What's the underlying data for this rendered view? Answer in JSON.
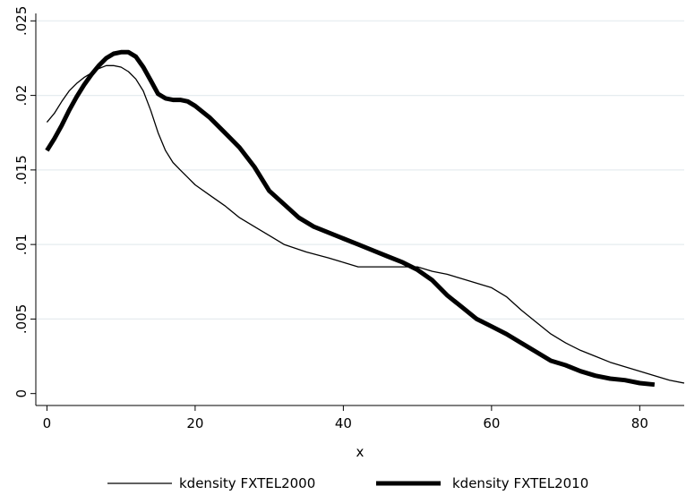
{
  "chart_data": {
    "type": "line",
    "title": "",
    "xlabel": "x",
    "ylabel": "",
    "xlim": [
      -1.5,
      86
    ],
    "ylim": [
      -0.0008,
      0.0255
    ],
    "x_ticks": [
      0,
      20,
      40,
      60,
      80
    ],
    "x_tick_labels": [
      "0",
      "20",
      "40",
      "60",
      "80"
    ],
    "y_ticks": [
      0,
      0.005,
      0.01,
      0.015,
      0.02,
      0.025
    ],
    "y_tick_labels": [
      "0",
      ".005",
      ".01",
      ".015",
      ".02",
      ".025"
    ],
    "grid": "horizontal",
    "legend_position": "bottom",
    "series": [
      {
        "name": "kdensity FXTEL2000",
        "color": "#000000",
        "style": "thin",
        "x": [
          0,
          1,
          2,
          3,
          4,
          5,
          6,
          7,
          8,
          9,
          10,
          11,
          12,
          13,
          14,
          15,
          16,
          17,
          18,
          19,
          20,
          22,
          24,
          26,
          28,
          30,
          32,
          35,
          38,
          40,
          42,
          45,
          48,
          50,
          52,
          54,
          56,
          58,
          60,
          62,
          64,
          66,
          68,
          70,
          72,
          74,
          76,
          78,
          80,
          82,
          84,
          86
        ],
        "values": [
          0.0182,
          0.0188,
          0.0196,
          0.0203,
          0.0208,
          0.0212,
          0.0215,
          0.0218,
          0.022,
          0.022,
          0.0219,
          0.0216,
          0.0211,
          0.0203,
          0.019,
          0.0175,
          0.0163,
          0.0155,
          0.015,
          0.0145,
          0.014,
          0.0133,
          0.0126,
          0.0118,
          0.0112,
          0.0106,
          0.01,
          0.0095,
          0.0091,
          0.0088,
          0.0085,
          0.0085,
          0.0085,
          0.0085,
          0.0082,
          0.008,
          0.0077,
          0.0074,
          0.0071,
          0.0065,
          0.0056,
          0.0048,
          0.004,
          0.0034,
          0.0029,
          0.0025,
          0.0021,
          0.0018,
          0.0015,
          0.0012,
          0.0009,
          0.0007
        ]
      },
      {
        "name": "kdensity FXTEL2010",
        "color": "#000000",
        "style": "thick",
        "x": [
          0,
          1,
          2,
          3,
          4,
          5,
          6,
          7,
          8,
          9,
          10,
          11,
          12,
          13,
          14,
          15,
          16,
          17,
          18,
          19,
          20,
          22,
          24,
          26,
          28,
          30,
          32,
          34,
          36,
          38,
          40,
          42,
          44,
          46,
          48,
          50,
          52,
          54,
          56,
          58,
          60,
          62,
          64,
          66,
          68,
          70,
          72,
          74,
          76,
          78,
          80,
          82
        ],
        "values": [
          0.0163,
          0.0171,
          0.018,
          0.019,
          0.0199,
          0.0207,
          0.0214,
          0.022,
          0.0225,
          0.0228,
          0.0229,
          0.0229,
          0.0226,
          0.0219,
          0.021,
          0.0201,
          0.0198,
          0.0197,
          0.0197,
          0.0196,
          0.0193,
          0.0185,
          0.0175,
          0.0165,
          0.0152,
          0.0136,
          0.0127,
          0.0118,
          0.0112,
          0.0108,
          0.0104,
          0.01,
          0.0096,
          0.0092,
          0.0088,
          0.0083,
          0.0076,
          0.0066,
          0.0058,
          0.005,
          0.0045,
          0.004,
          0.0034,
          0.0028,
          0.0022,
          0.0019,
          0.0015,
          0.0012,
          0.001,
          0.0009,
          0.0007,
          0.0006
        ]
      }
    ]
  }
}
